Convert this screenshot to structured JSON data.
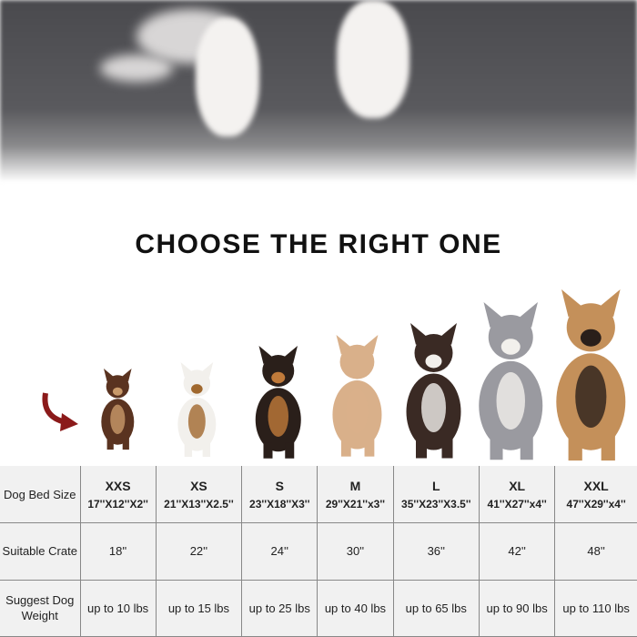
{
  "title": "CHOOSE THE RIGHT ONE",
  "colors": {
    "arrow": "#8b1a1a",
    "table_bg": "#f1f1f1",
    "fur": "#505054"
  },
  "icons": {
    "arrow": "curved-arrow-icon"
  },
  "table": {
    "row_headers": [
      "Dog Bed Size",
      "Suitable Crate",
      "Suggest Dog Weight"
    ],
    "columns": [
      {
        "size": "XXS",
        "dims": "17''X12''X2''",
        "crate": "18''",
        "weight": "up to 10 lbs"
      },
      {
        "size": "XS",
        "dims": "21''X13''X2.5''",
        "crate": "22''",
        "weight": "up to 15 lbs"
      },
      {
        "size": "S",
        "dims": "23''X18''X3''",
        "crate": "24''",
        "weight": "up to 25 lbs"
      },
      {
        "size": "M",
        "dims": "29''X21''x3''",
        "crate": "30''",
        "weight": "up to 40 lbs"
      },
      {
        "size": "L",
        "dims": "35''X23''X3.5''",
        "crate": "36''",
        "weight": "up to 65 lbs"
      },
      {
        "size": "XL",
        "dims": "41''X27''x4''",
        "crate": "42''",
        "weight": "up to 90 lbs"
      },
      {
        "size": "XXL",
        "dims": "47''X29''x4''",
        "crate": "48''",
        "weight": "up to 110 lbs"
      }
    ]
  }
}
